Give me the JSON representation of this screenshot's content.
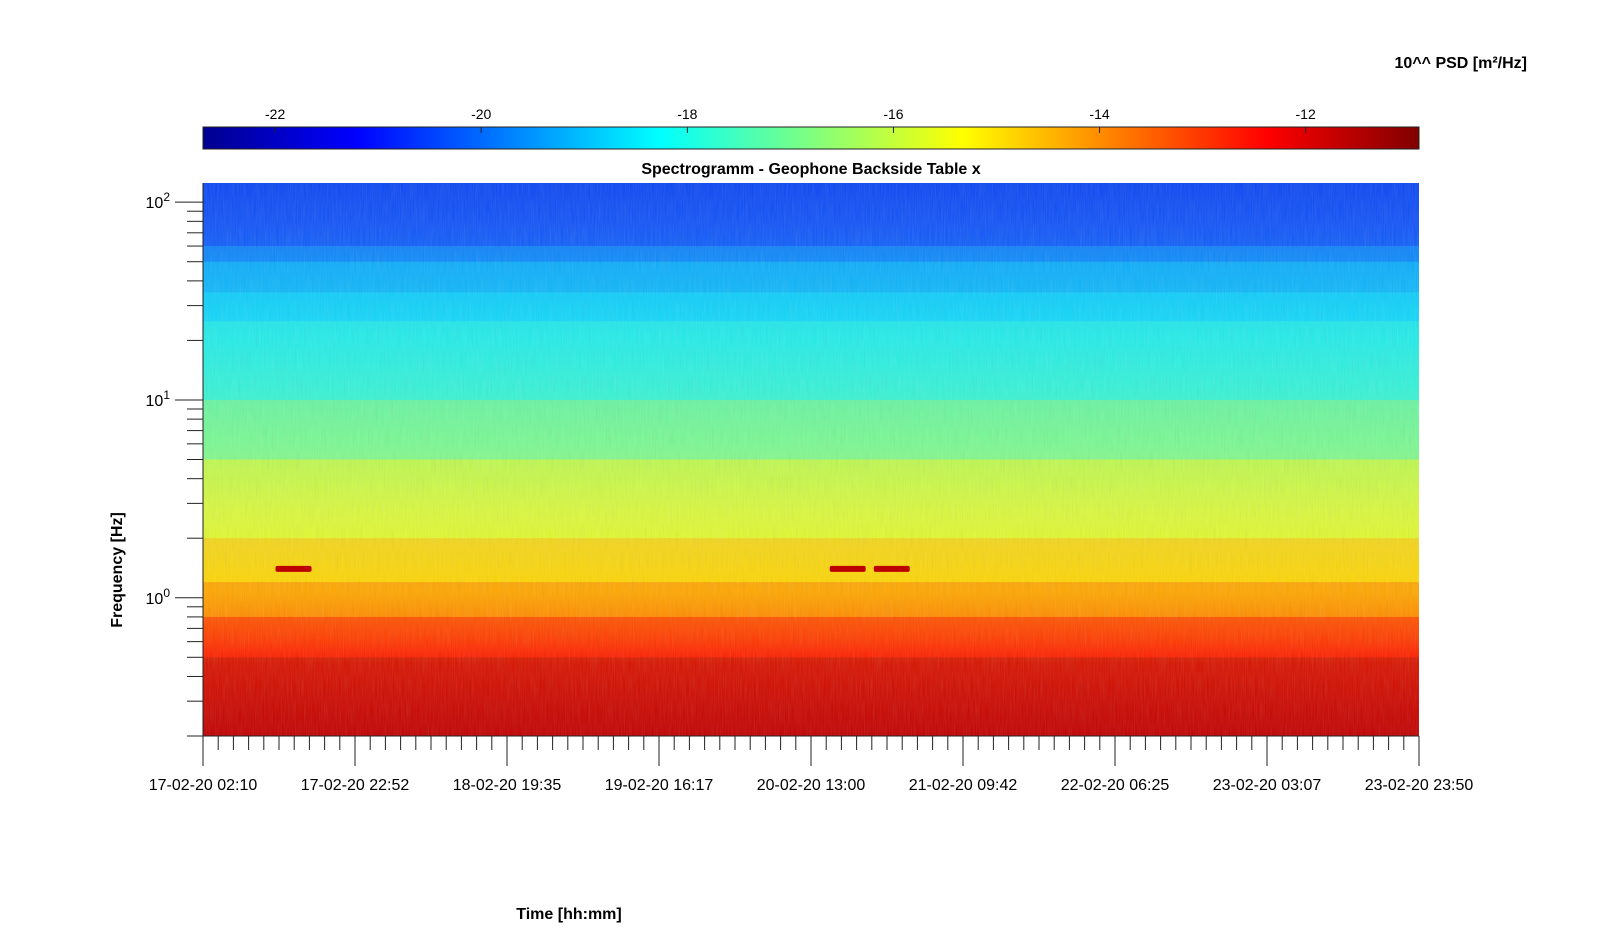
{
  "chart_data": {
    "type": "heatmap",
    "title": "Spectrogramm - Geophone Backside Table x",
    "xlabel": "Time [hh:mm]",
    "ylabel": "Frequency [Hz]",
    "y_scale": "log",
    "ylim": [
      0.2,
      125
    ],
    "x_ticks": [
      "17-02-20 02:10",
      "17-02-20 22:52",
      "18-02-20 19:35",
      "19-02-20 16:17",
      "20-02-20 13:00",
      "21-02-20 09:42",
      "22-02-20 06:25",
      "23-02-20 03:07",
      "23-02-20 23:50"
    ],
    "y_ticks": [
      {
        "base": "10",
        "exp": "0",
        "value": 1
      },
      {
        "base": "10",
        "exp": "1",
        "value": 10
      },
      {
        "base": "10",
        "exp": "2",
        "value": 100
      }
    ],
    "colorbar": {
      "label": "10^^ PSD [m²/Hz]",
      "range": [
        -22.7,
        -10.9
      ],
      "ticks": [
        "-22",
        "-20",
        "-18",
        "-16",
        "-14",
        "-12"
      ],
      "colormap": "jet"
    },
    "psd_profile": {
      "frequency_hz": [
        125,
        60,
        50,
        35,
        25,
        10,
        5,
        2,
        1.2,
        0.8,
        0.5,
        0.2
      ],
      "log_psd": [
        -20.8,
        -20.2,
        -19.3,
        -18.8,
        -18.4,
        -17.5,
        -16.4,
        -15.0,
        -14.2,
        -13.0,
        -11.8,
        -11.3
      ]
    },
    "features": [
      {
        "time": "17-02-20 14:30",
        "frequency_hz": 1.4,
        "log_psd": -11.6
      },
      {
        "time": "20-02-20 18:00",
        "frequency_hz": 1.4,
        "log_psd": -11.6
      },
      {
        "time": "21-02-20 00:00",
        "frequency_hz": 1.4,
        "log_psd": -11.6
      }
    ]
  }
}
